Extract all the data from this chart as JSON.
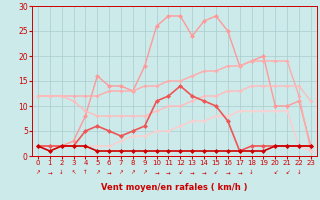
{
  "background_color": "#cceaea",
  "grid_color": "#aacccc",
  "xlabel": "Vent moyen/en rafales ( km/h )",
  "xlim": [
    -0.5,
    23.5
  ],
  "ylim": [
    0,
    30
  ],
  "yticks": [
    0,
    5,
    10,
    15,
    20,
    25,
    30
  ],
  "xticks": [
    0,
    1,
    2,
    3,
    4,
    5,
    6,
    7,
    8,
    9,
    10,
    11,
    12,
    13,
    14,
    15,
    16,
    17,
    18,
    19,
    20,
    21,
    22,
    23
  ],
  "series": [
    {
      "name": "peak_light",
      "color": "#ff9999",
      "lw": 1.0,
      "ms": 2.5,
      "x": [
        0,
        1,
        2,
        3,
        4,
        5,
        6,
        7,
        8,
        9,
        10,
        11,
        12,
        13,
        14,
        15,
        16,
        17,
        18,
        19,
        20,
        21,
        22,
        23
      ],
      "y": [
        2,
        2,
        2,
        3,
        8,
        16,
        14,
        14,
        13,
        18,
        26,
        28,
        28,
        24,
        27,
        28,
        25,
        18,
        19,
        20,
        10,
        10,
        11,
        2
      ]
    },
    {
      "name": "diag_top",
      "color": "#ffaaaa",
      "lw": 1.0,
      "ms": 2.0,
      "x": [
        0,
        1,
        2,
        3,
        4,
        5,
        6,
        7,
        8,
        9,
        10,
        11,
        12,
        13,
        14,
        15,
        16,
        17,
        18,
        19,
        20,
        21,
        22,
        23
      ],
      "y": [
        12,
        12,
        12,
        12,
        12,
        12,
        13,
        13,
        13,
        14,
        14,
        15,
        15,
        16,
        17,
        17,
        18,
        18,
        19,
        19,
        19,
        19,
        12,
        1
      ]
    },
    {
      "name": "diag_mid",
      "color": "#ffbbbb",
      "lw": 1.0,
      "ms": 2.0,
      "x": [
        0,
        1,
        2,
        3,
        4,
        5,
        6,
        7,
        8,
        9,
        10,
        11,
        12,
        13,
        14,
        15,
        16,
        17,
        18,
        19,
        20,
        21,
        22,
        23
      ],
      "y": [
        12,
        12,
        12,
        11,
        9,
        8,
        8,
        8,
        8,
        8,
        9,
        10,
        10,
        11,
        12,
        12,
        13,
        13,
        14,
        14,
        14,
        14,
        14,
        11
      ]
    },
    {
      "name": "diag_low",
      "color": "#ffcccc",
      "lw": 1.0,
      "ms": 2.0,
      "x": [
        0,
        1,
        2,
        3,
        4,
        5,
        6,
        7,
        8,
        9,
        10,
        11,
        12,
        13,
        14,
        15,
        16,
        17,
        18,
        19,
        20,
        21,
        22,
        23
      ],
      "y": [
        2,
        2,
        2,
        2,
        2,
        2,
        2,
        3,
        4,
        4,
        5,
        5,
        6,
        7,
        7,
        8,
        8,
        9,
        9,
        9,
        9,
        9,
        2,
        1
      ]
    },
    {
      "name": "medium_line",
      "color": "#ee5555",
      "lw": 1.2,
      "ms": 2.5,
      "x": [
        0,
        1,
        2,
        3,
        4,
        5,
        6,
        7,
        8,
        9,
        10,
        11,
        12,
        13,
        14,
        15,
        16,
        17,
        18,
        19,
        20,
        21,
        22,
        23
      ],
      "y": [
        2,
        2,
        2,
        2,
        5,
        6,
        5,
        4,
        5,
        6,
        11,
        12,
        14,
        12,
        11,
        10,
        7,
        1,
        2,
        2,
        2,
        2,
        2,
        2
      ]
    },
    {
      "name": "dark_line",
      "color": "#cc0000",
      "lw": 1.2,
      "ms": 2.5,
      "x": [
        0,
        1,
        2,
        3,
        4,
        5,
        6,
        7,
        8,
        9,
        10,
        11,
        12,
        13,
        14,
        15,
        16,
        17,
        18,
        19,
        20,
        21,
        22,
        23
      ],
      "y": [
        2,
        1,
        2,
        2,
        2,
        1,
        1,
        1,
        1,
        1,
        1,
        1,
        1,
        1,
        1,
        1,
        1,
        1,
        1,
        1,
        2,
        2,
        2,
        2
      ]
    }
  ],
  "wind_arrows": {
    "x": [
      0,
      1,
      2,
      3,
      4,
      5,
      6,
      7,
      8,
      9,
      10,
      11,
      12,
      13,
      14,
      15,
      16,
      17,
      18,
      19,
      20,
      21,
      22,
      23
    ],
    "symbols": [
      "↗",
      "→",
      "↓",
      "↖",
      "↑",
      "↗",
      "→",
      "↗",
      "↗",
      "↗",
      "→",
      "→",
      "↙",
      "→",
      "→",
      "↙",
      "→",
      "→",
      "↓",
      "",
      "↙",
      "↙",
      "↓",
      ""
    ]
  }
}
